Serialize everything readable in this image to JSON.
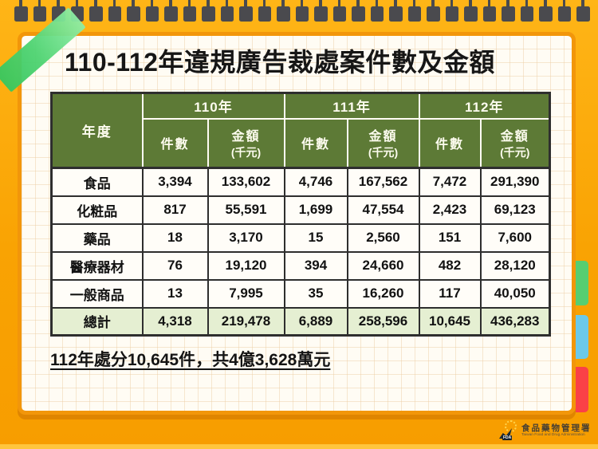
{
  "title": "110-112年違規廣告裁處案件數及金額",
  "note": {
    "text": "112年處分10,645件，共4億3,628萬元"
  },
  "footer_logo": {
    "abbr": "FDA",
    "org_zh": "食品藥物管理署",
    "org_en": "Taiwan Food and Drug Administration"
  },
  "chart_data": {
    "type": "table",
    "title": "110-112年違規廣告裁處案件數及金額",
    "corner_label": "年度",
    "col_groups": [
      "110年",
      "111年",
      "112年"
    ],
    "sub_headers": {
      "count": "件數",
      "amount": "金額",
      "amount_unit": "(千元)"
    },
    "rows": [
      {
        "category": "食品",
        "values": [
          "3,394",
          "133,602",
          "4,746",
          "167,562",
          "7,472",
          "291,390"
        ]
      },
      {
        "category": "化粧品",
        "values": [
          "817",
          "55,591",
          "1,699",
          "47,554",
          "2,423",
          "69,123"
        ]
      },
      {
        "category": "藥品",
        "values": [
          "18",
          "3,170",
          "15",
          "2,560",
          "151",
          "7,600"
        ]
      },
      {
        "category": "醫療器材",
        "values": [
          "76",
          "19,120",
          "394",
          "24,660",
          "482",
          "28,120"
        ]
      },
      {
        "category": "一般商品",
        "values": [
          "13",
          "7,995",
          "35",
          "16,260",
          "117",
          "40,050"
        ]
      },
      {
        "category": "總計",
        "values": [
          "4,318",
          "219,478",
          "6,889",
          "258,596",
          "10,645",
          "436,283"
        ],
        "is_total": true
      }
    ],
    "footnote": "112年處分10,645件，共4億3,628萬元"
  },
  "colors": {
    "frame_orange": "#f9a303",
    "header_green": "#5d7a36",
    "total_row_green": "#e5efd2",
    "tab_green": "#57ce71",
    "tab_blue": "#6cc9e9",
    "tab_red": "#fa4147",
    "tape_green": "#4ed371",
    "clip_gray": "#4a4a4e"
  }
}
